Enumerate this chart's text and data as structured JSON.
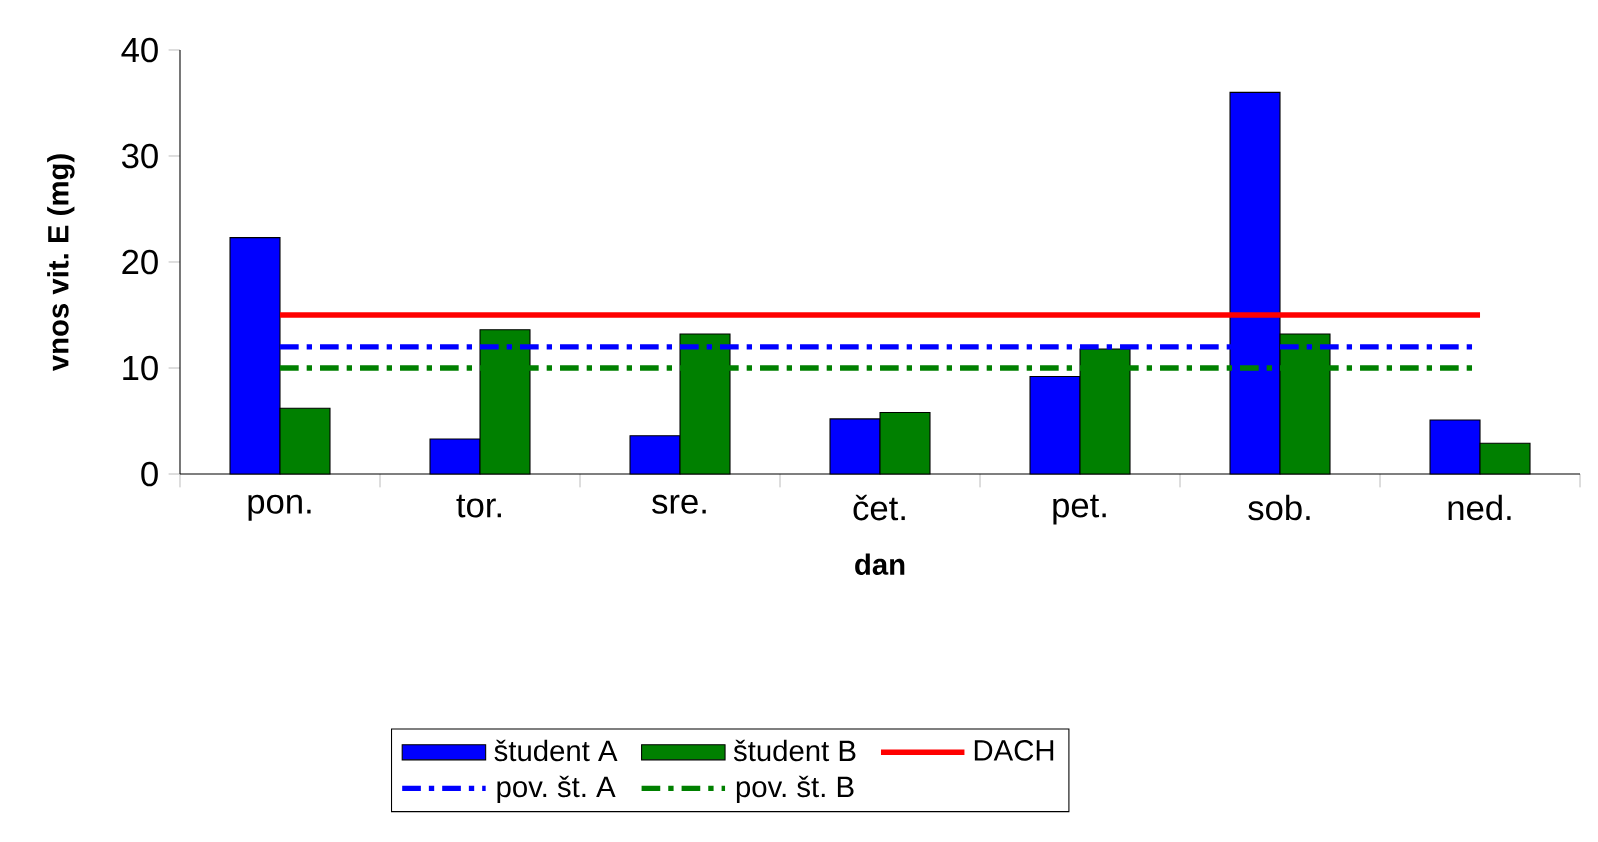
{
  "chart_data": {
    "type": "bar",
    "xlabel": "dan",
    "ylabel": "vnos vit. E (mg)",
    "categories": [
      "pon.",
      "tor.",
      "sre.",
      "čet.",
      "pet.",
      "sob.",
      "ned."
    ],
    "series": [
      {
        "name": "študent A",
        "color": "#0000ff",
        "values": [
          22.3,
          3.3,
          3.6,
          5.2,
          9.2,
          36,
          5.1
        ]
      },
      {
        "name": "študent B",
        "color": "#008000",
        "values": [
          6.2,
          13.6,
          13.2,
          5.8,
          11.8,
          13.2,
          2.9
        ]
      },
      {
        "name": "DACH",
        "type": "line",
        "color": "#ff0000",
        "line_style": "solid",
        "values": [
          15,
          15,
          15,
          15,
          15,
          15,
          15
        ]
      },
      {
        "name": "pov. št. A",
        "type": "line",
        "color": "#0000ff",
        "line_style": "dashdot",
        "values": [
          12,
          12,
          12,
          12,
          12,
          12,
          12
        ]
      },
      {
        "name": "pov. št. B",
        "type": "line",
        "color": "#008000",
        "line_style": "dashdot",
        "values": [
          10,
          10,
          10,
          10,
          10,
          10,
          10
        ]
      }
    ],
    "ylim": [
      0,
      40
    ],
    "yticks": [
      0,
      10,
      20,
      30,
      40
    ],
    "grid": false,
    "legend": "bottom",
    "marker": "none"
  }
}
